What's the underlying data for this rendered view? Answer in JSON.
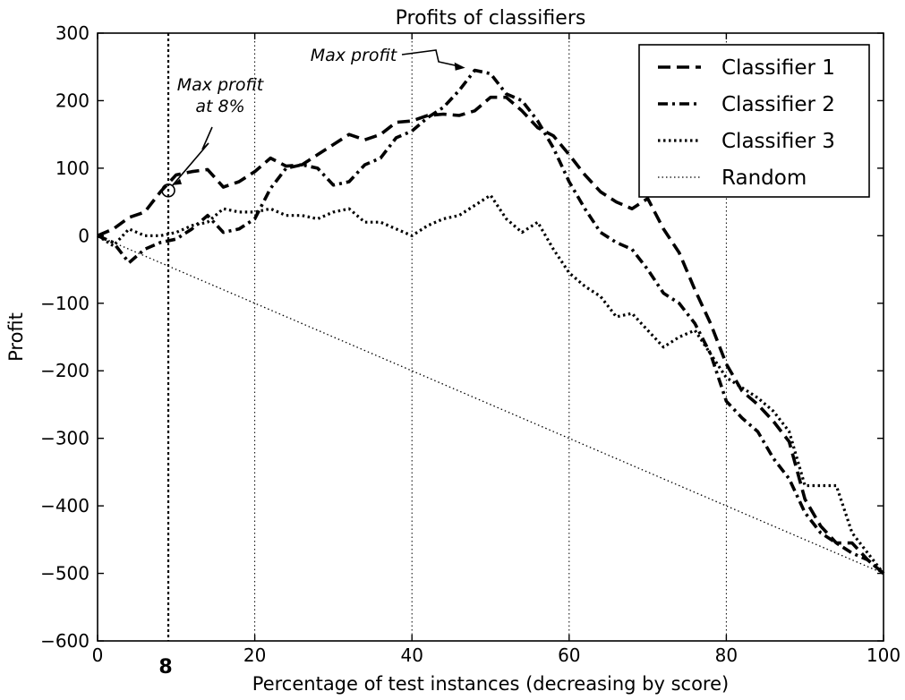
{
  "chart_data": {
    "type": "line",
    "title": "Profits of classifiers",
    "xlabel": "Percentage of test instances (decreasing by score)",
    "ylabel": "Profit",
    "xlim": [
      0,
      100
    ],
    "ylim": [
      -600,
      300
    ],
    "xticks": [
      0,
      20,
      40,
      60,
      80,
      100
    ],
    "xtick_labels": [
      "0",
      "20",
      "40",
      "60",
      "80",
      "100"
    ],
    "yticks": [
      300,
      200,
      100,
      0,
      -100,
      -200,
      -300,
      -400,
      -500,
      -600
    ],
    "ytick_labels": [
      "300",
      "200",
      "100",
      "0",
      "−100",
      "−200",
      "−300",
      "−400",
      "−500",
      "−600"
    ],
    "vertical_gridlines_at": [
      20,
      40,
      60,
      80
    ],
    "legend_position": "top-right",
    "series": [
      {
        "name": "Classifier 1",
        "line_style": "dashed",
        "x": [
          0,
          2,
          4,
          6,
          8,
          10,
          12,
          14,
          16,
          18,
          20,
          22,
          24,
          26,
          28,
          30,
          32,
          34,
          36,
          38,
          40,
          42,
          44,
          46,
          48,
          50,
          52,
          54,
          56,
          58,
          60,
          62,
          64,
          66,
          68,
          70,
          72,
          74,
          76,
          78,
          80,
          82,
          84,
          86,
          88,
          90,
          92,
          94,
          96,
          98,
          100
        ],
        "y": [
          0,
          10,
          27,
          35,
          65,
          90,
          95,
          98,
          72,
          80,
          95,
          115,
          103,
          105,
          120,
          135,
          150,
          142,
          150,
          168,
          170,
          178,
          180,
          178,
          185,
          205,
          205,
          185,
          160,
          148,
          120,
          90,
          65,
          50,
          40,
          55,
          10,
          -25,
          -80,
          -130,
          -190,
          -230,
          -250,
          -275,
          -305,
          -390,
          -430,
          -455,
          -455,
          -480,
          -500
        ]
      },
      {
        "name": "Classifier 2",
        "line_style": "dashdot",
        "x": [
          0,
          2,
          4,
          6,
          8,
          10,
          12,
          14,
          16,
          18,
          20,
          22,
          24,
          26,
          28,
          30,
          32,
          34,
          36,
          38,
          40,
          42,
          44,
          46,
          48,
          50,
          52,
          54,
          56,
          58,
          60,
          62,
          64,
          66,
          68,
          70,
          72,
          74,
          76,
          78,
          80,
          82,
          84,
          86,
          88,
          90,
          92,
          94,
          96,
          98,
          100
        ],
        "y": [
          0,
          -10,
          -40,
          -20,
          -10,
          -5,
          10,
          30,
          5,
          10,
          25,
          70,
          100,
          105,
          100,
          75,
          80,
          105,
          115,
          145,
          155,
          175,
          190,
          215,
          245,
          240,
          210,
          200,
          170,
          130,
          80,
          40,
          5,
          -10,
          -20,
          -50,
          -85,
          -100,
          -130,
          -175,
          -245,
          -270,
          -290,
          -330,
          -360,
          -410,
          -440,
          -455,
          -470,
          -480,
          -500
        ]
      },
      {
        "name": "Classifier 3",
        "line_style": "dotted",
        "x": [
          0,
          2,
          4,
          6,
          8,
          10,
          12,
          14,
          16,
          18,
          20,
          22,
          24,
          26,
          28,
          30,
          32,
          34,
          36,
          38,
          40,
          42,
          44,
          46,
          48,
          50,
          52,
          54,
          56,
          58,
          60,
          62,
          64,
          66,
          68,
          70,
          72,
          74,
          76,
          78,
          80,
          82,
          84,
          86,
          88,
          90,
          92,
          94,
          96,
          98,
          100
        ],
        "y": [
          0,
          -15,
          10,
          0,
          0,
          5,
          15,
          20,
          40,
          35,
          35,
          40,
          30,
          30,
          25,
          35,
          40,
          20,
          20,
          10,
          0,
          15,
          25,
          30,
          45,
          60,
          25,
          5,
          20,
          -20,
          -55,
          -75,
          -90,
          -120,
          -115,
          -140,
          -165,
          -150,
          -140,
          -175,
          -210,
          -225,
          -240,
          -260,
          -290,
          -370,
          -370,
          -370,
          -440,
          -470,
          -500
        ]
      },
      {
        "name": "Random",
        "line_style": "fine-dotted",
        "x": [
          0,
          100
        ],
        "y": [
          0,
          -500
        ]
      }
    ],
    "annotations": [
      {
        "text_lines": [
          "Max profit",
          "at 8%"
        ],
        "x": 9,
        "y": 67,
        "marker": "circle"
      },
      {
        "text_lines": [
          "Max profit"
        ],
        "x": 47,
        "y": 250,
        "marker": "arrow"
      }
    ],
    "cutoff_line": {
      "x": 9,
      "label": "8"
    }
  }
}
